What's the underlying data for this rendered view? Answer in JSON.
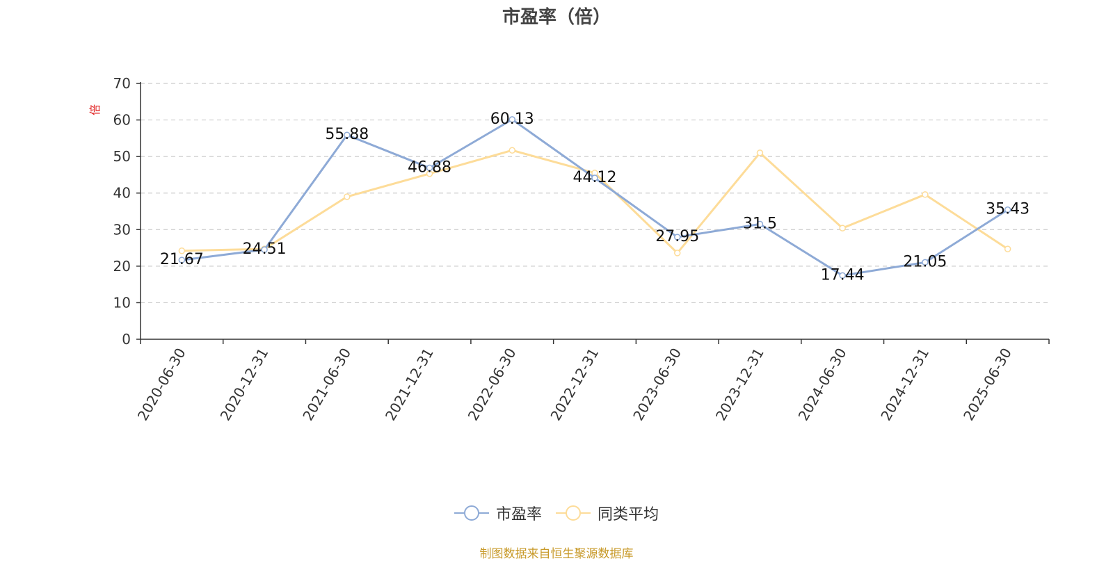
{
  "chart_data": {
    "type": "line",
    "title": "市盈率（倍）",
    "unit_label": "倍",
    "categories": [
      "2020-06-30",
      "2020-12-31",
      "2021-06-30",
      "2021-12-31",
      "2022-06-30",
      "2022-12-31",
      "2023-06-30",
      "2023-12-31",
      "2024-06-30",
      "2024-12-31",
      "2025-06-30"
    ],
    "ylim": [
      0,
      70
    ],
    "yticks": [
      0,
      10,
      20,
      30,
      40,
      50,
      60,
      70
    ],
    "grid": true,
    "legend_position": "bottom",
    "series": [
      {
        "name": "市盈率",
        "color": "#8eaad6",
        "values": [
          21.67,
          24.51,
          55.88,
          46.88,
          60.13,
          44.12,
          27.95,
          31.5,
          17.44,
          21.05,
          35.43
        ],
        "data_labels": [
          "21.67",
          "24.51",
          "55.88",
          "46.88",
          "60.13",
          "44.12",
          "27.95",
          "31.5",
          "17.44",
          "21.05",
          "35.43"
        ]
      },
      {
        "name": "同类平均",
        "color": "#fddc99",
        "values": [
          24.2,
          24.7,
          39.0,
          45.3,
          51.7,
          45.5,
          23.6,
          51.0,
          30.4,
          39.6,
          24.7
        ]
      }
    ]
  },
  "footer": "制图数据来自恒生聚源数据库"
}
